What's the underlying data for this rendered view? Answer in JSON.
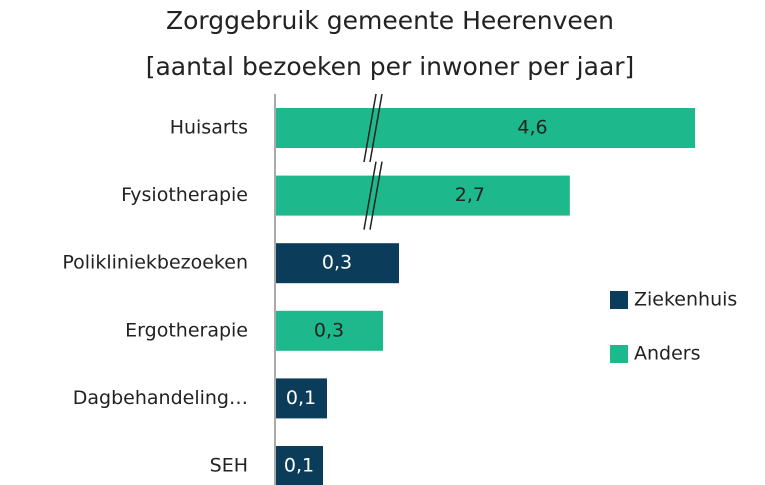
{
  "chart_data": {
    "type": "bar",
    "orientation": "horizontal",
    "title": "Zorggebruik gemeente Heerenveen",
    "subtitle": "[aantal bezoeken per inwoner per jaar]",
    "categories": [
      "Huisarts",
      "Fysiotherapie",
      "Polikliniekbezoeken",
      "Ergotherapie",
      "Dagbehandeling…",
      "SEH"
    ],
    "series": [
      {
        "name": "Ziekenhuis",
        "color": "#0b3d5b",
        "values": [
          null,
          null,
          0.31,
          null,
          0.13,
          0.12
        ],
        "value_labels": [
          null,
          null,
          "0,3",
          null,
          "0,1",
          "0,1"
        ]
      },
      {
        "name": "Anders",
        "color": "#1db98c",
        "values": [
          4.6,
          2.7,
          null,
          0.27,
          null,
          null
        ],
        "value_labels": [
          null,
          null,
          null,
          "0,3",
          null,
          null
        ]
      }
    ],
    "value_labels_anders": null,
    "legend": "right"
  }
}
